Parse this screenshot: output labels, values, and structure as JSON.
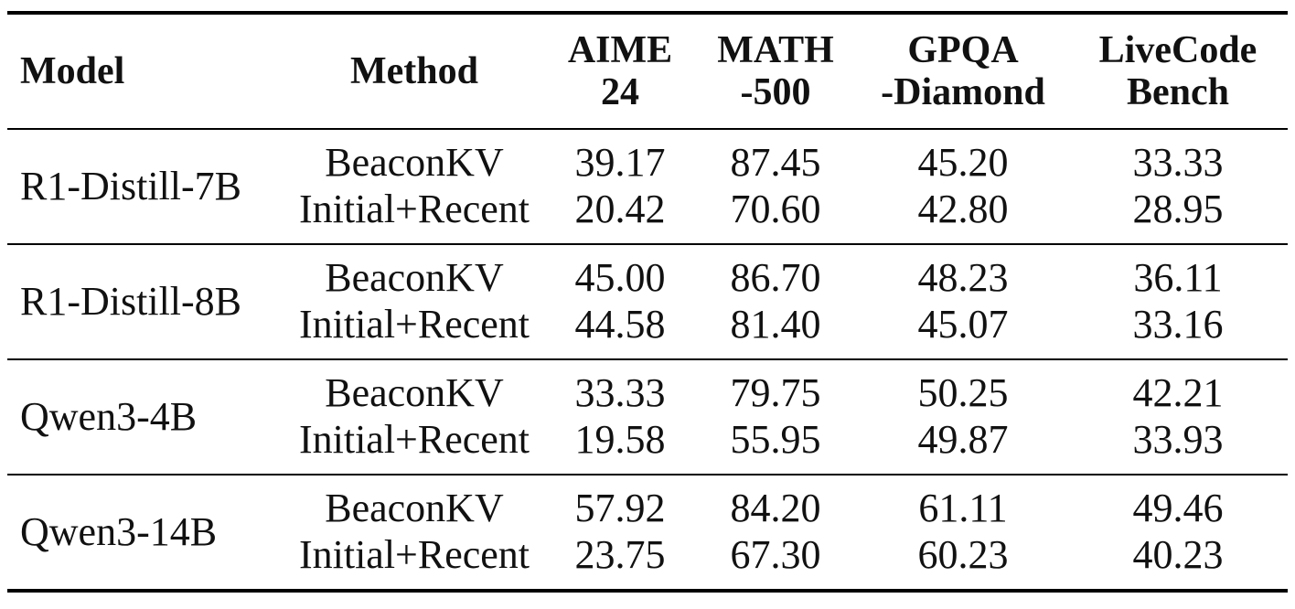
{
  "table": {
    "headers": {
      "model": "Model",
      "method": "Method",
      "aime": [
        "AIME",
        "24"
      ],
      "math": [
        "MATH",
        "-500"
      ],
      "gpqa": [
        "GPQA",
        "-Diamond"
      ],
      "livecode": [
        "LiveCode",
        "Bench"
      ]
    },
    "groups": [
      {
        "model": "R1-Distill-7B",
        "methods": [
          "BeaconKV",
          "Initial+Recent"
        ],
        "aime": [
          "39.17",
          "20.42"
        ],
        "math": [
          "87.45",
          "70.60"
        ],
        "gpqa": [
          "45.20",
          "42.80"
        ],
        "livecode": [
          "33.33",
          "28.95"
        ]
      },
      {
        "model": "R1-Distill-8B",
        "methods": [
          "BeaconKV",
          "Initial+Recent"
        ],
        "aime": [
          "45.00",
          "44.58"
        ],
        "math": [
          "86.70",
          "81.40"
        ],
        "gpqa": [
          "48.23",
          "45.07"
        ],
        "livecode": [
          "36.11",
          "33.16"
        ]
      },
      {
        "model": "Qwen3-4B",
        "methods": [
          "BeaconKV",
          "Initial+Recent"
        ],
        "aime": [
          "33.33",
          "19.58"
        ],
        "math": [
          "79.75",
          "55.95"
        ],
        "gpqa": [
          "50.25",
          "49.87"
        ],
        "livecode": [
          "42.21",
          "33.93"
        ]
      },
      {
        "model": "Qwen3-14B",
        "methods": [
          "BeaconKV",
          "Initial+Recent"
        ],
        "aime": [
          "57.92",
          "23.75"
        ],
        "math": [
          "84.20",
          "67.30"
        ],
        "gpqa": [
          "61.11",
          "60.23"
        ],
        "livecode": [
          "49.46",
          "40.23"
        ]
      }
    ]
  }
}
